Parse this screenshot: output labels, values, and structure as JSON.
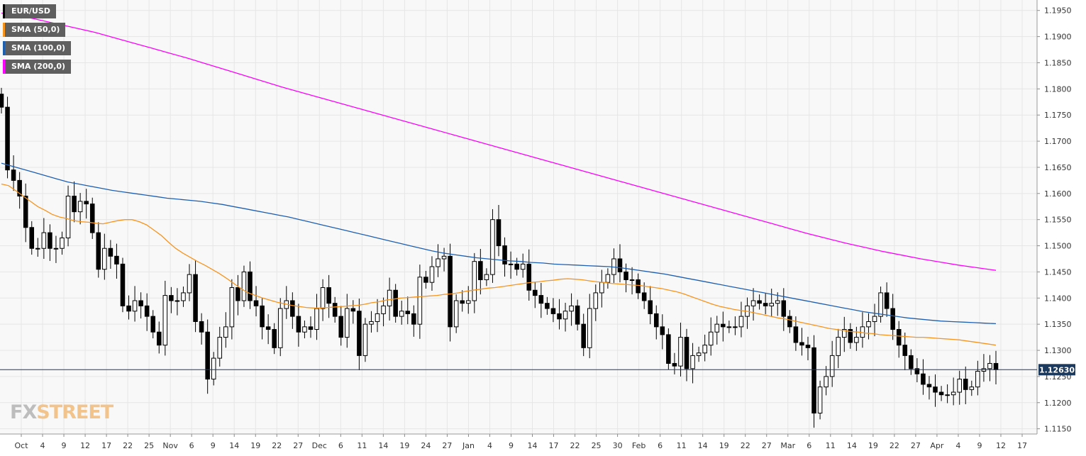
{
  "chart_data": {
    "type": "candlestick",
    "symbol": "EUR/USD",
    "last_price": 1.1263,
    "last_price_label": "1.12630",
    "ylim": [
      1.114,
      1.197
    ],
    "y_ticks": [
      1.195,
      1.19,
      1.185,
      1.18,
      1.175,
      1.17,
      1.165,
      1.16,
      1.155,
      1.15,
      1.145,
      1.14,
      1.135,
      1.13,
      1.125,
      1.12,
      1.115
    ],
    "y_tick_labels": [
      "1.1950",
      "1.1900",
      "1.1850",
      "1.1800",
      "1.1750",
      "1.1700",
      "1.1650",
      "1.1600",
      "1.1550",
      "1.1500",
      "1.1450",
      "1.1400",
      "1.1350",
      "1.1300",
      "1.1250",
      "1.1200",
      "1.1150"
    ],
    "x_tick_labels": [
      "Oct",
      "4",
      "9",
      "12",
      "17",
      "22",
      "25",
      "Nov",
      "6",
      "9",
      "14",
      "19",
      "22",
      "27",
      "Dec",
      "6",
      "11",
      "14",
      "19",
      "24",
      "27",
      "Jan",
      "4",
      "9",
      "14",
      "17",
      "22",
      "25",
      "30",
      "Feb",
      "6",
      "11",
      "14",
      "19",
      "22",
      "27",
      "Mar",
      "6",
      "11",
      "14",
      "19",
      "22",
      "27",
      "Apr",
      "4",
      "9",
      "12",
      "17"
    ],
    "grid": true,
    "legend_position": "top-left",
    "colors": {
      "up_candle": "#ffffff",
      "down_candle": "#000000",
      "sma50": "#f7941d",
      "sma100": "#1f5fb0",
      "sma200": "#ff00ff",
      "price_line": "#1c3a5e",
      "price_tag": "#1c3a5e",
      "grid": "#e6e6e6",
      "plot_bg": "#f8f8f8"
    },
    "legend": [
      {
        "label": "EUR/USD",
        "color": "#000000"
      },
      {
        "label": "SMA (50,0)",
        "color": "#f7941d"
      },
      {
        "label": "SMA (100,0)",
        "color": "#1f5fb0"
      },
      {
        "label": "SMA (200,0)",
        "color": "#ff00ff"
      }
    ],
    "closes": [
      1.1765,
      1.1645,
      1.1625,
      1.1595,
      1.1535,
      1.1495,
      1.1495,
      1.1525,
      1.1495,
      1.1495,
      1.1515,
      1.1595,
      1.1565,
      1.1585,
      1.158,
      1.1525,
      1.1455,
      1.1495,
      1.148,
      1.1465,
      1.1385,
      1.1375,
      1.1395,
      1.1385,
      1.1365,
      1.1335,
      1.131,
      1.1405,
      1.1395,
      1.1395,
      1.141,
      1.1445,
      1.1355,
      1.1335,
      1.1245,
      1.1285,
      1.1325,
      1.1345,
      1.142,
      1.1395,
      1.145,
      1.1395,
      1.1385,
      1.1345,
      1.134,
      1.1305,
      1.138,
      1.1395,
      1.1365,
      1.1335,
      1.1345,
      1.134,
      1.138,
      1.142,
      1.139,
      1.1365,
      1.1325,
      1.138,
      1.1375,
      1.129,
      1.135,
      1.1355,
      1.137,
      1.1385,
      1.1415,
      1.1365,
      1.1375,
      1.137,
      1.135,
      1.144,
      1.143,
      1.146,
      1.1475,
      1.148,
      1.1345,
      1.1395,
      1.139,
      1.1395,
      1.147,
      1.1435,
      1.1445,
      1.155,
      1.15,
      1.1465,
      1.1465,
      1.1455,
      1.1465,
      1.1415,
      1.1405,
      1.139,
      1.138,
      1.137,
      1.136,
      1.1375,
      1.1385,
      1.135,
      1.1305,
      1.138,
      1.141,
      1.143,
      1.1445,
      1.1475,
      1.145,
      1.1435,
      1.1435,
      1.141,
      1.1395,
      1.137,
      1.1345,
      1.133,
      1.1275,
      1.127,
      1.1325,
      1.1265,
      1.129,
      1.1295,
      1.131,
      1.1335,
      1.135,
      1.1345,
      1.1345,
      1.1345,
      1.1365,
      1.1385,
      1.1395,
      1.139,
      1.1385,
      1.139,
      1.1395,
      1.1365,
      1.1345,
      1.1315,
      1.131,
      1.1305,
      1.118,
      1.123,
      1.125,
      1.129,
      1.1325,
      1.134,
      1.1315,
      1.1325,
      1.1345,
      1.1355,
      1.1365,
      1.141,
      1.138,
      1.134,
      1.131,
      1.129,
      1.1265,
      1.1255,
      1.1235,
      1.123,
      1.122,
      1.1215,
      1.1215,
      1.122,
      1.1245,
      1.1225,
      1.123,
      1.126,
      1.1265,
      1.1275,
      1.1263
    ],
    "sma50": [
      1.1618,
      1.1615,
      1.1605,
      1.1595,
      1.1585,
      1.1575,
      1.1568,
      1.156,
      1.1555,
      1.1552,
      1.1548,
      1.1546,
      1.1545,
      1.1543,
      1.1542,
      1.1545,
      1.1548,
      1.155,
      1.155,
      1.1546,
      1.154,
      1.153,
      1.152,
      1.1507,
      1.1495,
      1.1486,
      1.1478,
      1.147,
      1.1463,
      1.1455,
      1.1447,
      1.1438,
      1.1428,
      1.1418,
      1.141,
      1.1405,
      1.14,
      1.1396,
      1.1392,
      1.1389,
      1.1386,
      1.1384,
      1.1382,
      1.1381,
      1.1381,
      1.1382,
      1.1383,
      1.1384,
      1.1385,
      1.1386,
      1.1388,
      1.1391,
      1.1393,
      1.1396,
      1.1398,
      1.14,
      1.1401,
      1.1402,
      1.1403,
      1.1404,
      1.1405,
      1.1407,
      1.1408,
      1.141,
      1.1413,
      1.1415,
      1.1417,
      1.1419,
      1.142,
      1.1422,
      1.1424,
      1.1426,
      1.1428,
      1.143,
      1.1431,
      1.1433,
      1.1434,
      1.1436,
      1.1437,
      1.1436,
      1.1435,
      1.1433,
      1.1431,
      1.143,
      1.1428,
      1.1427,
      1.1426,
      1.1425,
      1.1424,
      1.1422,
      1.142,
      1.1418,
      1.1415,
      1.1412,
      1.1408,
      1.1403,
      1.1398,
      1.1393,
      1.1388,
      1.1384,
      1.1381,
      1.1378,
      1.1376,
      1.1374,
      1.1371,
      1.1368,
      1.1365,
      1.1362,
      1.136,
      1.1357,
      1.1354,
      1.1351,
      1.1348,
      1.1345,
      1.1342,
      1.134,
      1.1338,
      1.1336,
      1.1335,
      1.1333,
      1.1332,
      1.133,
      1.1329,
      1.1328,
      1.1327,
      1.1326,
      1.1325,
      1.1325,
      1.1324,
      1.1323,
      1.1322,
      1.1321,
      1.132,
      1.1318,
      1.1316,
      1.1314,
      1.1312,
      1.131
    ],
    "sma100": [
      1.1658,
      1.1652,
      1.1646,
      1.164,
      1.1634,
      1.1628,
      1.1622,
      1.1618,
      1.1614,
      1.161,
      1.1606,
      1.1603,
      1.16,
      1.1597,
      1.1594,
      1.1591,
      1.1589,
      1.1587,
      1.1585,
      1.1582,
      1.1579,
      1.1575,
      1.1571,
      1.1567,
      1.1563,
      1.1559,
      1.1555,
      1.155,
      1.1545,
      1.154,
      1.1535,
      1.153,
      1.1525,
      1.152,
      1.1515,
      1.151,
      1.1505,
      1.15,
      1.1495,
      1.149,
      1.1486,
      1.1483,
      1.148,
      1.1477,
      1.1475,
      1.1473,
      1.1471,
      1.147,
      1.1468,
      1.1467,
      1.1465,
      1.1464,
      1.1463,
      1.1462,
      1.1461,
      1.146,
      1.1458,
      1.1455,
      1.1452,
      1.1449,
      1.1446,
      1.1442,
      1.1438,
      1.1434,
      1.143,
      1.1426,
      1.1422,
      1.1418,
      1.1414,
      1.141,
      1.1406,
      1.1402,
      1.1398,
      1.1394,
      1.139,
      1.1386,
      1.1382,
      1.1378,
      1.1374,
      1.1371,
      1.1368,
      1.1365,
      1.1362,
      1.136,
      1.1358,
      1.1356,
      1.1355,
      1.1354,
      1.1353,
      1.1352,
      1.1351
    ],
    "sma200": [
      1.1945,
      1.194,
      1.1932,
      1.1924,
      1.1916,
      1.1908,
      1.1898,
      1.1888,
      1.1878,
      1.1868,
      1.1858,
      1.1847,
      1.1836,
      1.1825,
      1.1814,
      1.1803,
      1.1793,
      1.1783,
      1.1773,
      1.1763,
      1.1753,
      1.1743,
      1.1733,
      1.1723,
      1.1713,
      1.1703,
      1.1693,
      1.1683,
      1.1673,
      1.1663,
      1.1653,
      1.1643,
      1.1633,
      1.1623,
      1.1613,
      1.1603,
      1.1593,
      1.1583,
      1.1573,
      1.1563,
      1.1553,
      1.1543,
      1.1533,
      1.1523,
      1.1514,
      1.1505,
      1.1497,
      1.1489,
      1.1482,
      1.1475,
      1.1469,
      1.1463,
      1.1458,
      1.1453
    ]
  }
}
